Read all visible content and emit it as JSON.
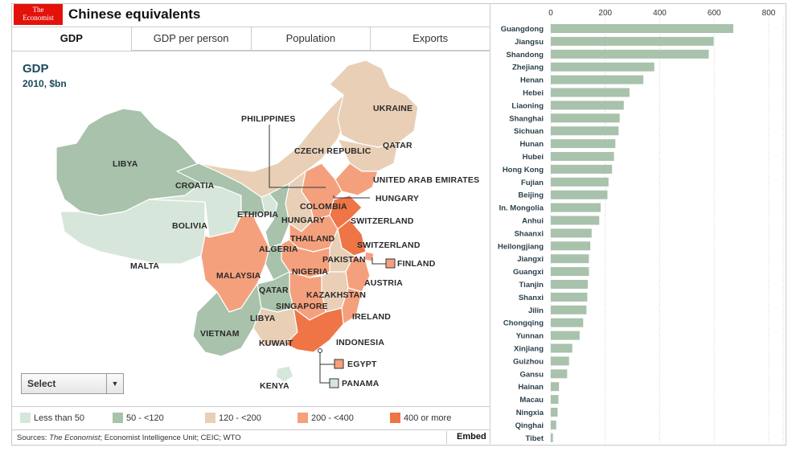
{
  "header": {
    "logo_line1": "The",
    "logo_line2": "Economist",
    "title": "Chinese equivalents"
  },
  "tabs": [
    {
      "label": "GDP",
      "active": true
    },
    {
      "label": "GDP per person",
      "active": false
    },
    {
      "label": "Population",
      "active": false
    },
    {
      "label": "Exports",
      "active": false
    }
  ],
  "metric": {
    "name": "GDP",
    "sub": "2010, $bn"
  },
  "map_labels": [
    "LIBYA",
    "CROATIA",
    "BOLIVIA",
    "MALTA",
    "ETHIOPIA",
    "PHILIPPINES",
    "CZECH REPUBLIC",
    "UKRAINE",
    "QATAR",
    "UNITED ARAB EMIRATES",
    "HUNGARY",
    "COLOMBIA",
    "HUNGARY",
    "SWITZERLAND",
    "THAILAND",
    "SWITZERLAND",
    "ALGERIA",
    "PAKISTAN",
    "FINLAND",
    "NIGERIA",
    "AUSTRIA",
    "MALAYSIA",
    "QATAR",
    "KAZAKHSTAN",
    "SINGAPORE",
    "LIBYA",
    "IRELAND",
    "VIETNAM",
    "KUWAIT",
    "INDONESIA",
    "EGYPT",
    "PANAMA",
    "KENYA"
  ],
  "select": {
    "label": "Select"
  },
  "legend": [
    {
      "label": "Less than 50",
      "color": "#d7e6da"
    },
    {
      "label": "50 - <120",
      "color": "#a8c2ab"
    },
    {
      "label": "120 - <200",
      "color": "#e8cfb6"
    },
    {
      "label": "200 - <400",
      "color": "#f5a07d"
    },
    {
      "label": "400 or more",
      "color": "#ef7446"
    }
  ],
  "sources": {
    "prefix": "Sources: ",
    "italic": "The Economist",
    "rest": "; Economist Intelligence Unit; CEIC; WTO"
  },
  "embed": "Embed",
  "chart_data": {
    "type": "bar",
    "orientation": "horizontal",
    "bar_color": "#a8c2ab",
    "xlim": [
      0,
      800
    ],
    "ticks": [
      0,
      200,
      400,
      600,
      800
    ],
    "tick_labels": [
      "0",
      "200",
      "400",
      "600",
      "800"
    ],
    "categories": [
      "Guangdong",
      "Jiangsu",
      "Shandong",
      "Zhejiang",
      "Henan",
      "Hebei",
      "Liaoning",
      "Shanghai",
      "Sichuan",
      "Hunan",
      "Hubei",
      "Hong Kong",
      "Fujian",
      "Beijing",
      "In. Mongolia",
      "Anhui",
      "Shaanxi",
      "Heilongjiang",
      "Jiangxi",
      "Guangxi",
      "Tianjin",
      "Shanxi",
      "Jilin",
      "Chongqing",
      "Yunnan",
      "Xinjiang",
      "Guizhou",
      "Gansu",
      "Hainan",
      "Macau",
      "Ningxia",
      "Qinghai",
      "Tibet"
    ],
    "values": [
      670,
      598,
      580,
      380,
      340,
      289,
      268,
      253,
      249,
      237,
      232,
      225,
      212,
      208,
      183,
      178,
      150,
      145,
      140,
      140,
      136,
      134,
      131,
      119,
      106,
      79,
      67,
      60,
      30,
      28,
      25,
      20,
      8
    ]
  }
}
